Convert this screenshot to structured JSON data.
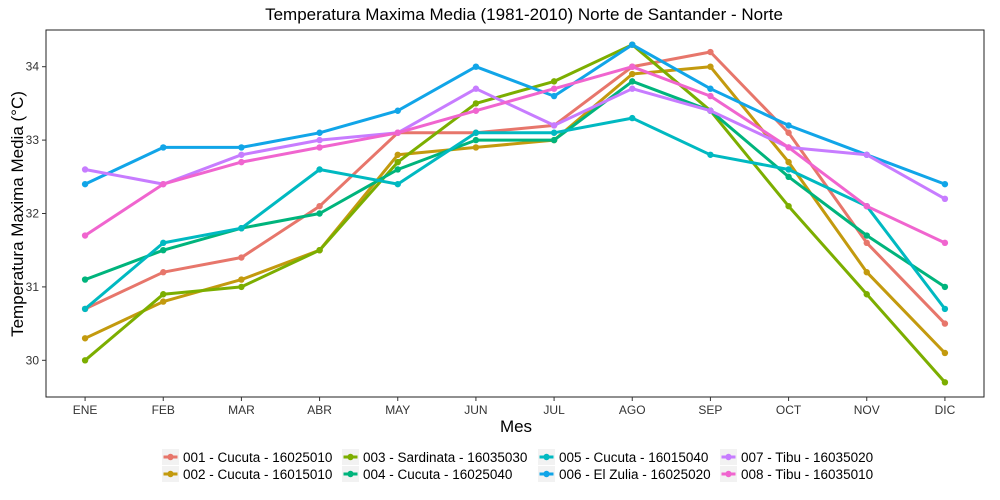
{
  "chart_data": {
    "type": "line",
    "title": "Temperatura Maxima Media (1981-2010)  Norte de Santander - Norte",
    "xlabel": "Mes",
    "ylabel": "Temperatura Maxima Media  (°C)",
    "categories": [
      "ENE",
      "FEB",
      "MAR",
      "ABR",
      "MAY",
      "JUN",
      "JUL",
      "AGO",
      "SEP",
      "OCT",
      "NOV",
      "DIC"
    ],
    "ylim": [
      29.5,
      34.5
    ],
    "yticks": [
      30,
      31,
      32,
      33,
      34
    ],
    "grid": false,
    "legend_position": "bottom",
    "series": [
      {
        "name": "001 - Cucuta - 16025010",
        "color": "#E7766B",
        "values": [
          30.7,
          31.2,
          31.4,
          32.1,
          33.1,
          33.1,
          33.2,
          34.0,
          34.2,
          33.1,
          31.6,
          30.5
        ]
      },
      {
        "name": "002 - Cucuta - 16015010",
        "color": "#C39A0E",
        "values": [
          30.3,
          30.8,
          31.1,
          31.5,
          32.8,
          32.9,
          33.0,
          33.9,
          34.0,
          32.7,
          31.2,
          30.1
        ]
      },
      {
        "name": "003 - Sardinata - 16035030",
        "color": "#7CAE00",
        "values": [
          30.0,
          30.9,
          31.0,
          31.5,
          32.7,
          33.5,
          33.8,
          34.3,
          33.4,
          32.1,
          30.9,
          29.7
        ]
      },
      {
        "name": "004 - Cucuta - 16025040",
        "color": "#00B47C",
        "values": [
          31.1,
          31.5,
          31.8,
          32.0,
          32.6,
          33.0,
          33.0,
          33.8,
          33.4,
          32.5,
          31.7,
          31.0
        ]
      },
      {
        "name": "005 - Cucuta - 16015040",
        "color": "#00B9C1",
        "values": [
          30.7,
          31.6,
          31.8,
          32.6,
          32.4,
          33.1,
          33.1,
          33.3,
          32.8,
          32.6,
          32.1,
          30.7
        ]
      },
      {
        "name": "006 - El Zulia - 16025020",
        "color": "#11A5E8",
        "values": [
          32.4,
          32.9,
          32.9,
          33.1,
          33.4,
          34.0,
          33.6,
          34.3,
          33.7,
          33.2,
          32.8,
          32.4
        ]
      },
      {
        "name": "007 - Tibu - 16035020",
        "color": "#C77CFF",
        "values": [
          32.6,
          32.4,
          32.8,
          33.0,
          33.1,
          33.7,
          33.2,
          33.7,
          33.4,
          32.9,
          32.8,
          32.2
        ]
      },
      {
        "name": "008 - Tibu - 16035010",
        "color": "#F065CF",
        "values": [
          31.7,
          32.4,
          32.7,
          32.9,
          33.1,
          33.4,
          33.7,
          34.0,
          33.6,
          32.9,
          32.1,
          31.6
        ]
      }
    ]
  }
}
